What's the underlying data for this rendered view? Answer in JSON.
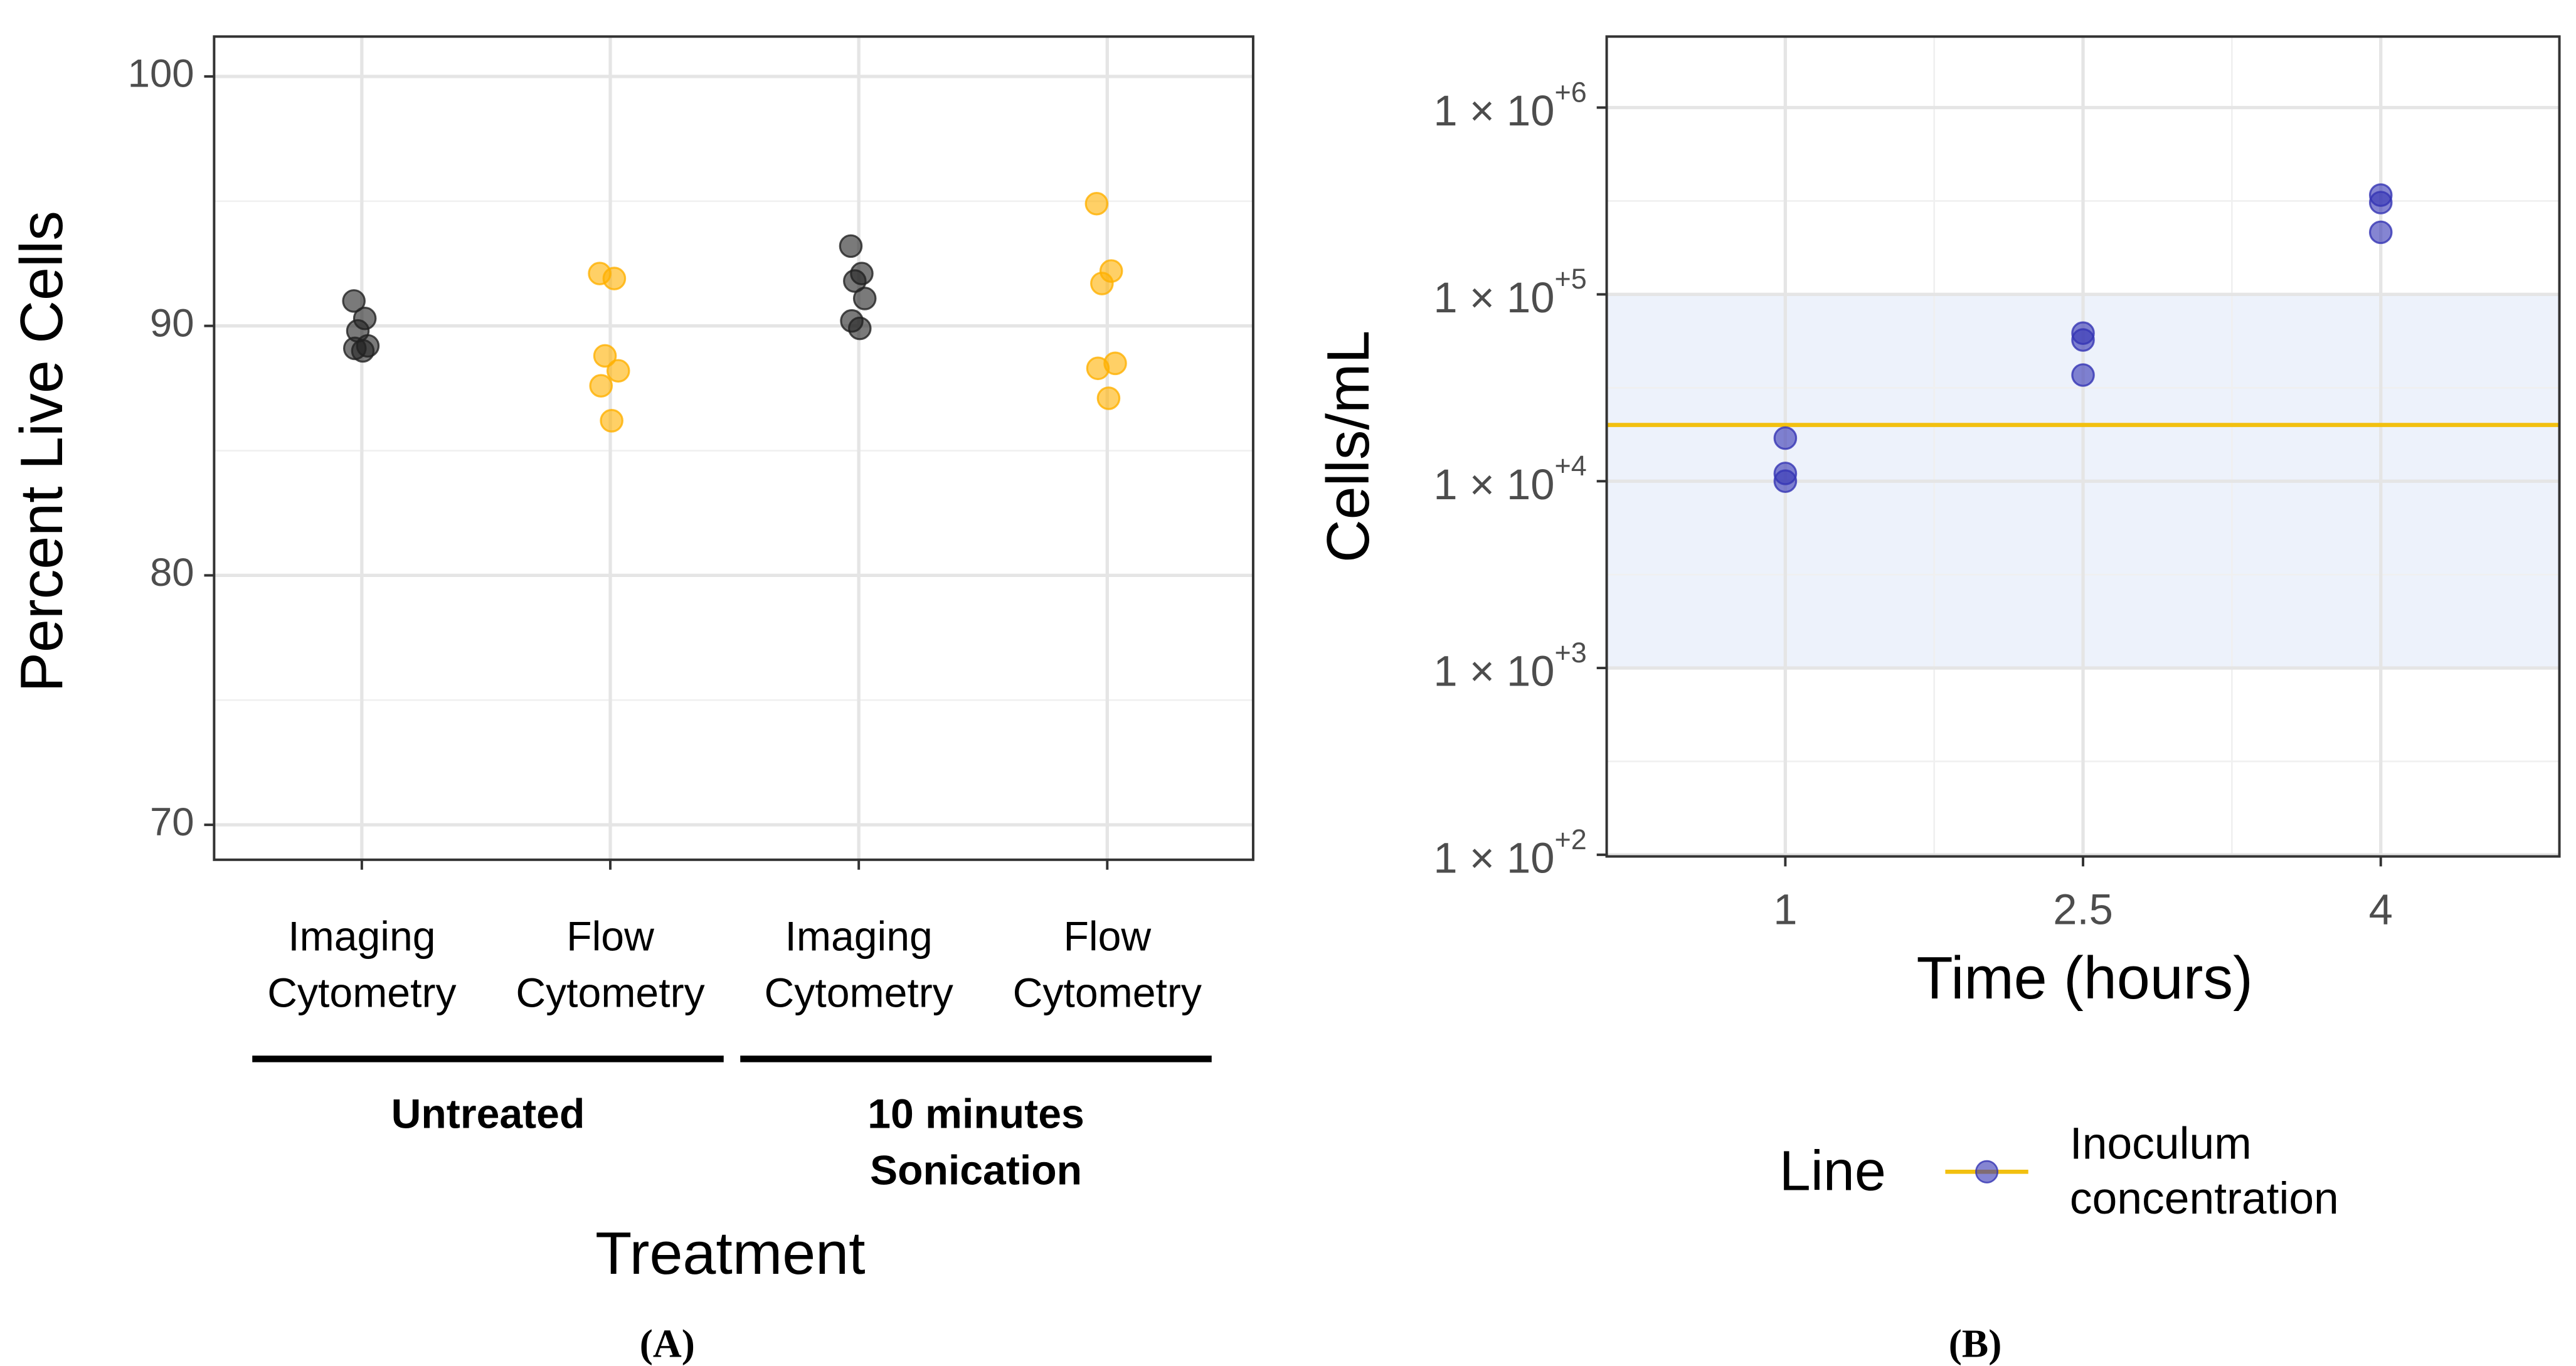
{
  "chart_data": [
    {
      "type": "scatter",
      "panel_label": "(A)",
      "x_label": "Treatment",
      "y_label": "Percent Live Cells",
      "categories": [
        [
          "Imaging",
          "Cytometry"
        ],
        [
          "Flow",
          "Cytometry"
        ],
        [
          "Imaging",
          "Cytometry"
        ],
        [
          "Flow",
          "Cytometry"
        ]
      ],
      "groups": [
        [
          "Untreated"
        ],
        [
          "10 minutes",
          "Sonication"
        ]
      ],
      "colors": [
        "#222222",
        "#ffb000",
        "#222222",
        "#ffb000"
      ],
      "values": [
        [
          91.0,
          90.3,
          89.8,
          89.2,
          89.1,
          89.0
        ],
        [
          92.1,
          91.9,
          88.8,
          88.2,
          87.6,
          86.2
        ],
        [
          93.2,
          92.1,
          91.8,
          91.1,
          90.2,
          89.9
        ],
        [
          94.9,
          92.2,
          91.7,
          88.5,
          88.3,
          87.1
        ]
      ],
      "ylim": [
        68.6,
        101.6
      ],
      "yticks": [
        70,
        80,
        90,
        100
      ],
      "grid": true
    },
    {
      "type": "scatter",
      "panel_label": "(B)",
      "x_label": "Time (hours)",
      "y_label": "Cells/mL",
      "log_y": true,
      "x": [
        1,
        1,
        1,
        2.5,
        2.5,
        2.5,
        4,
        4,
        4
      ],
      "values": [
        17000,
        11000,
        10000,
        62000,
        57000,
        37000,
        340000,
        310000,
        215000
      ],
      "color": "#3434b4",
      "xlim": [
        0.1,
        4.9
      ],
      "xticks": [
        1,
        {
          "value": 2.5,
          "label": "2.5"
        },
        4
      ],
      "ylim": [
        98,
        2400000
      ],
      "yticks": [
        {
          "value": 100,
          "label": "1 × 10",
          "exponent": "+2"
        },
        {
          "value": 1000,
          "label": "1 × 10",
          "exponent": "+3"
        },
        {
          "value": 10000,
          "label": "1 × 10",
          "exponent": "+4"
        },
        {
          "value": 100000,
          "label": "1 × 10",
          "exponent": "+5"
        },
        {
          "value": 1000000,
          "label": "1 × 10",
          "exponent": "+6"
        }
      ],
      "band": [
        1000,
        100000
      ],
      "band_color": "#edf2fb",
      "hline": {
        "value": 20000,
        "color": "#f2c00f",
        "name": [
          "Inoculum",
          "concentration"
        ]
      },
      "legend_title": "Line",
      "legend": "bottom",
      "grid": true
    }
  ]
}
